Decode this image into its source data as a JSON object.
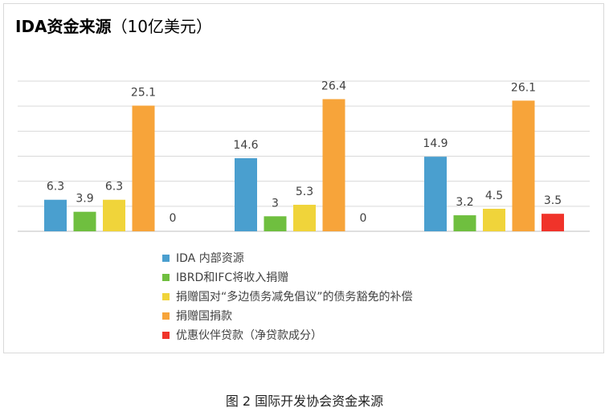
{
  "title": {
    "main": "IDA资金来源",
    "unit": "（10亿美元）"
  },
  "caption": "图 2 国际开发协会资金来源",
  "chart_data": {
    "type": "bar",
    "title": "IDA资金来源（10亿美元）",
    "categories": [
      "",
      "",
      ""
    ],
    "ylim": [
      0,
      30
    ],
    "grid": true,
    "legend_position": "bottom",
    "series": [
      {
        "name": "IDA 内部资源",
        "color": "#4a9fcf",
        "values": [
          6.3,
          14.6,
          14.9
        ]
      },
      {
        "name": "IBRD和IFC将收入捐赠",
        "color": "#6fbf3f",
        "values": [
          3.9,
          3,
          3.2
        ]
      },
      {
        "name": "捐赠国对“多边债务减免倡议”的债务豁免的补偿",
        "color": "#f0d43a",
        "values": [
          6.3,
          5.3,
          4.5
        ]
      },
      {
        "name": "捐赠国捐款",
        "color": "#f7a43a",
        "values": [
          25.1,
          26.4,
          26.1
        ]
      },
      {
        "name": "优惠伙伴贷款（净贷款成分）",
        "color": "#f0332a",
        "values": [
          0,
          0,
          3.5
        ]
      }
    ]
  }
}
